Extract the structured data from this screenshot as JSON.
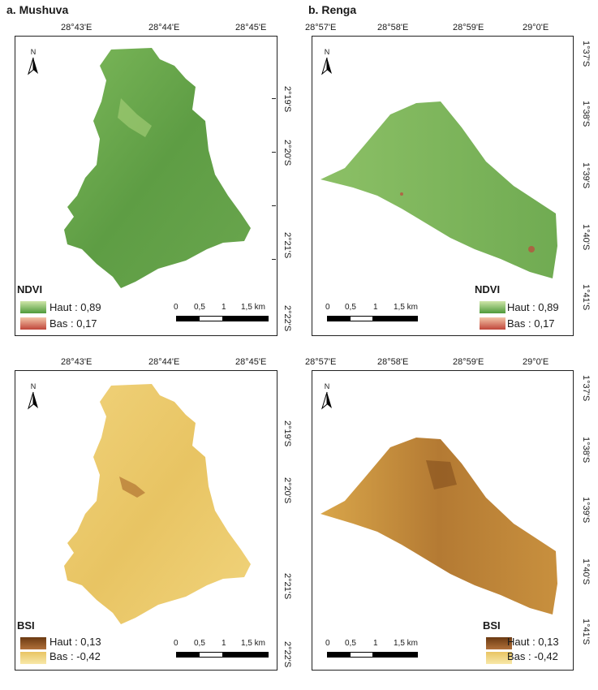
{
  "panels": {
    "mushuva": {
      "title": "a. Mushuva",
      "lon_ticks": [
        "28°43'E",
        "28°44'E",
        "28°45'E"
      ],
      "lat_ticks": [
        "2°19'S",
        "2°20'S",
        "2°21'S",
        "2°22'S"
      ]
    },
    "renga": {
      "title": "b. Renga",
      "lon_ticks": [
        "28°57'E",
        "28°58'E",
        "28°59'E",
        "29°0'E"
      ],
      "lat_ticks": [
        "1°37'S",
        "1°38'S",
        "1°39'S",
        "1°40'S",
        "1°41'S"
      ]
    }
  },
  "north_label": "N",
  "scale": {
    "labels": [
      "0",
      "0,5",
      "1",
      "1,5 km"
    ]
  },
  "legends": {
    "ndvi": {
      "title": "NDVI",
      "high": "Haut : 0,89",
      "low": "Bas : 0,17",
      "high_color": "#4f9a3a",
      "low_color": "#c0463a"
    },
    "bsi": {
      "title": "BSI",
      "high": "Haut : 0,13",
      "low": "Bas : -0,42",
      "high_color": "#6b3a12",
      "low_color": "#f4d978"
    }
  },
  "colors": {
    "ndvi_fill": "#6aa64e",
    "ndvi_fill_light": "#a8d07a",
    "bsi_fill": "#e9c866",
    "bsi_fill_dark": "#a8652a"
  }
}
